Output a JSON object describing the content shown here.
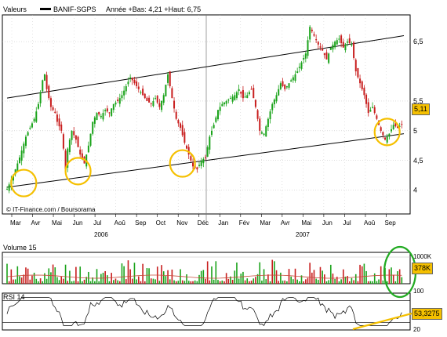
{
  "header": {
    "left_label": "Valeurs",
    "legend_label": "BANIF-SGPS",
    "stats": "Année +Bas: 4,21 +Haut: 6,75"
  },
  "source_text": "© IT-Finance.com / Boursorama",
  "colors": {
    "up": "#1aa31a",
    "down": "#c81e1e",
    "highlight": "#f5c000",
    "volume_circle": "#22aa22",
    "price_badge": "#f5c000",
    "grid": "#bbbbbb"
  },
  "chart_data": [
    {
      "type": "candlestick",
      "title": "",
      "x_months": [
        "Mar",
        "Avr",
        "Mai",
        "Jun",
        "Jul",
        "Aoû",
        "Sep",
        "Oct",
        "Nov",
        "Déc",
        "Jan",
        "Fév",
        "Mar",
        "Avr",
        "Mai",
        "Jun",
        "Jul",
        "Aoû",
        "Sep"
      ],
      "x_years": [
        "2006",
        "2007"
      ],
      "y_ticks": [
        "4",
        "4,5",
        "5",
        "5,5",
        "6,5"
      ],
      "ylim": [
        3.6,
        6.95
      ],
      "last_price_label": "5,11",
      "series": [
        {
          "values": [
            [
              0,
              4.02
            ],
            [
              3,
              4.25
            ],
            [
              6,
              4.55
            ],
            [
              9,
              4.9
            ],
            [
              11,
              5.05
            ],
            [
              13,
              5.2
            ],
            [
              15,
              5.45
            ],
            [
              17,
              5.85
            ],
            [
              18,
              5.95
            ],
            [
              19,
              5.7
            ],
            [
              21,
              5.4
            ],
            [
              23,
              5.3
            ],
            [
              24,
              5.15
            ],
            [
              26,
              5.0
            ],
            [
              27,
              4.7
            ],
            [
              28,
              4.35
            ],
            [
              29,
              4.7
            ],
            [
              31,
              5.0
            ],
            [
              33,
              4.85
            ],
            [
              35,
              4.6
            ],
            [
              37,
              4.45
            ],
            [
              39,
              4.75
            ],
            [
              41,
              5.15
            ],
            [
              43,
              5.3
            ],
            [
              45,
              5.25
            ],
            [
              47,
              5.35
            ],
            [
              49,
              5.3
            ],
            [
              51,
              5.45
            ],
            [
              53,
              5.5
            ],
            [
              55,
              5.6
            ],
            [
              57,
              5.75
            ],
            [
              59,
              5.9
            ],
            [
              61,
              5.8
            ],
            [
              63,
              5.7
            ],
            [
              65,
              5.6
            ],
            [
              67,
              5.5
            ],
            [
              69,
              5.45
            ],
            [
              71,
              5.55
            ],
            [
              73,
              5.4
            ],
            [
              75,
              5.6
            ],
            [
              77,
              5.95
            ],
            [
              79,
              5.55
            ],
            [
              81,
              5.2
            ],
            [
              83,
              5.05
            ],
            [
              85,
              4.8
            ],
            [
              87,
              4.6
            ],
            [
              89,
              4.4
            ],
            [
              91,
              4.35
            ],
            [
              93,
              4.5
            ],
            [
              95,
              4.55
            ],
            [
              97,
              4.9
            ],
            [
              99,
              5.1
            ],
            [
              101,
              5.35
            ],
            [
              103,
              5.45
            ],
            [
              105,
              5.5
            ],
            [
              107,
              5.55
            ],
            [
              109,
              5.6
            ],
            [
              111,
              5.7
            ],
            [
              113,
              5.55
            ],
            [
              115,
              5.6
            ],
            [
              117,
              5.7
            ],
            [
              119,
              5.4
            ],
            [
              121,
              5.0
            ],
            [
              123,
              4.95
            ],
            [
              125,
              5.2
            ],
            [
              127,
              5.45
            ],
            [
              129,
              5.6
            ],
            [
              131,
              5.8
            ],
            [
              133,
              5.7
            ],
            [
              135,
              5.8
            ],
            [
              137,
              5.9
            ],
            [
              139,
              6.0
            ],
            [
              141,
              6.15
            ],
            [
              143,
              6.3
            ],
            [
              145,
              6.75
            ],
            [
              147,
              6.6
            ],
            [
              149,
              6.45
            ],
            [
              151,
              6.35
            ],
            [
              153,
              6.2
            ],
            [
              155,
              6.4
            ],
            [
              157,
              6.5
            ],
            [
              159,
              6.55
            ],
            [
              161,
              6.4
            ],
            [
              163,
              6.5
            ],
            [
              165,
              6.45
            ],
            [
              167,
              6.0
            ],
            [
              169,
              5.8
            ],
            [
              171,
              5.6
            ],
            [
              173,
              5.3
            ],
            [
              175,
              5.4
            ],
            [
              177,
              5.2
            ],
            [
              179,
              5.0
            ],
            [
              181,
              4.85
            ],
            [
              183,
              4.95
            ],
            [
              185,
              5.1
            ],
            [
              187,
              5.05
            ],
            [
              189,
              5.11
            ]
          ]
        }
      ],
      "channel_lines": [
        {
          "name": "upper",
          "from": [
            0,
            5.55
          ],
          "to": [
            190,
            6.6
          ]
        },
        {
          "name": "lower",
          "from": [
            0,
            4.05
          ],
          "to": [
            190,
            4.95
          ]
        }
      ]
    },
    {
      "type": "bar",
      "title": "Volume 15",
      "y_ticks": [
        "1000K"
      ],
      "last_value_label": "378K"
    },
    {
      "type": "line",
      "title": "RSI 14",
      "y_ticks": [
        "100",
        "20"
      ],
      "last_value_label": "53,3275",
      "ylim": [
        0,
        100
      ]
    }
  ]
}
